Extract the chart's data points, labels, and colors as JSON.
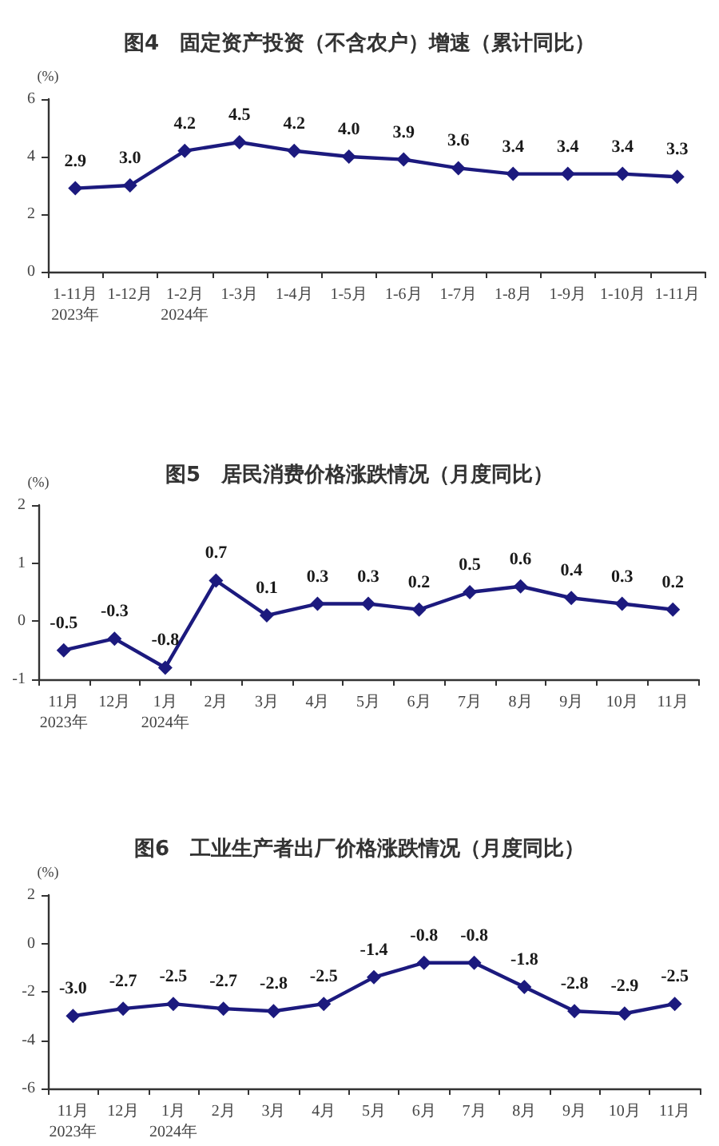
{
  "chart_data": [
    {
      "type": "line",
      "title": "图4　固定资产投资（不含农户）增速（累计同比）",
      "ylabel": "(%)",
      "categories": [
        "1-11月\n2023年",
        "1-12月",
        "1-2月\n2024年",
        "1-3月",
        "1-4月",
        "1-5月",
        "1-6月",
        "1-7月",
        "1-8月",
        "1-9月",
        "1-10月",
        "1-11月"
      ],
      "values": [
        2.9,
        3.0,
        4.2,
        4.5,
        4.2,
        4.0,
        3.9,
        3.6,
        3.4,
        3.4,
        3.4,
        3.3
      ],
      "value_labels": [
        "2.9",
        "3.0",
        "4.2",
        "4.5",
        "4.2",
        "4.0",
        "3.9",
        "3.6",
        "3.4",
        "3.4",
        "3.4",
        "3.3"
      ],
      "color": "#1c1a7e",
      "marker": "diamond",
      "ylim": [
        0,
        6
      ],
      "yticks": [
        0,
        2,
        4,
        6
      ]
    },
    {
      "type": "line",
      "title": "图5　居民消费价格涨跌情况（月度同比）",
      "ylabel": "(%)",
      "categories": [
        "11月\n2023年",
        "12月",
        "1月\n2024年",
        "2月",
        "3月",
        "4月",
        "5月",
        "6月",
        "7月",
        "8月",
        "9月",
        "10月",
        "11月"
      ],
      "values": [
        -0.5,
        -0.3,
        -0.8,
        0.7,
        0.1,
        0.3,
        0.3,
        0.2,
        0.5,
        0.6,
        0.4,
        0.3,
        0.2
      ],
      "value_labels": [
        "-0.5",
        "-0.3",
        "-0.8",
        "0.7",
        "0.1",
        "0.3",
        "0.3",
        "0.2",
        "0.5",
        "0.6",
        "0.4",
        "0.3",
        "0.2"
      ],
      "color": "#1c1a7e",
      "marker": "diamond",
      "ylim": [
        -1,
        2
      ],
      "yticks": [
        -1,
        0,
        1,
        2
      ]
    },
    {
      "type": "line",
      "title": "图6　工业生产者出厂价格涨跌情况（月度同比）",
      "ylabel": "(%)",
      "categories": [
        "11月\n2023年",
        "12月",
        "1月\n2024年",
        "2月",
        "3月",
        "4月",
        "5月",
        "6月",
        "7月",
        "8月",
        "9月",
        "10月",
        "11月"
      ],
      "values": [
        -3.0,
        -2.7,
        -2.5,
        -2.7,
        -2.8,
        -2.5,
        -1.4,
        -0.8,
        -0.8,
        -1.8,
        -2.8,
        -2.9,
        -2.5
      ],
      "value_labels": [
        "-3.0",
        "-2.7",
        "-2.5",
        "-2.7",
        "-2.8",
        "-2.5",
        "-1.4",
        "-0.8",
        "-0.8",
        "-1.8",
        "-2.8",
        "-2.9",
        "-2.5"
      ],
      "color": "#1c1a7e",
      "marker": "diamond",
      "ylim": [
        -6,
        2
      ],
      "yticks": [
        -6,
        -4,
        -2,
        0,
        2
      ]
    }
  ]
}
